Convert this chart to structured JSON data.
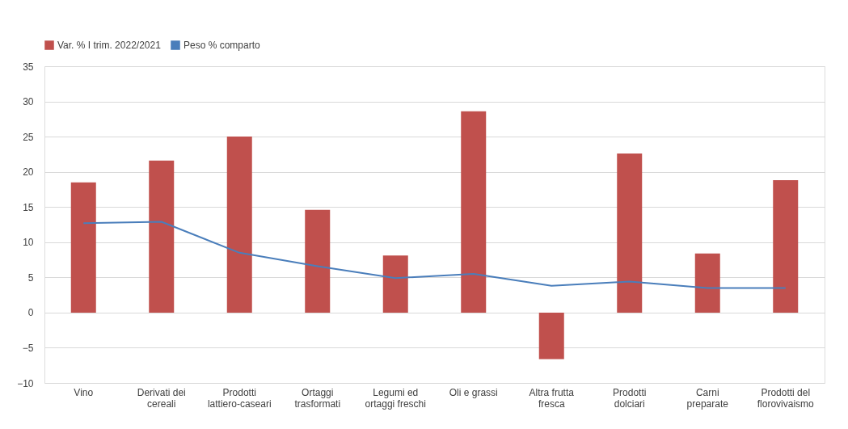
{
  "chart_data": {
    "type": "bar",
    "categories": [
      "Vino",
      "Derivati dei\ncereali",
      "Prodotti\nlattiero-caseari",
      "Ortaggi\ntrasformati",
      "Legumi ed\nortaggi freschi",
      "Oli e grassi",
      "Altra frutta\nfresca",
      "Prodotti\ndolciari",
      "Carni\npreparate",
      "Prodotti del\nflorovivaismo"
    ],
    "series": [
      {
        "name": "Var. % I trim. 2022/2021",
        "color": "#c0504d",
        "values": [
          18.5,
          21.6,
          25.0,
          14.6,
          8.1,
          28.6,
          -6.6,
          22.6,
          8.4,
          18.8
        ]
      },
      {
        "name": "Peso % comparto",
        "type": "line",
        "color": "#4a7ebb",
        "values": [
          12.7,
          12.9,
          8.5,
          6.6,
          4.9,
          5.5,
          3.8,
          4.4,
          3.5,
          3.5
        ]
      }
    ],
    "ylim": [
      -10,
      35
    ],
    "yticks": [
      -10,
      -5,
      0,
      5,
      10,
      15,
      20,
      25,
      30,
      35
    ],
    "grid": "y",
    "legend": "top"
  }
}
